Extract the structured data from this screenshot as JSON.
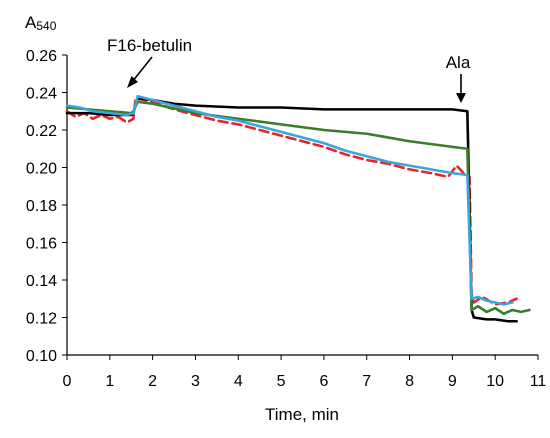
{
  "chart_data": {
    "type": "line",
    "ylabel_main": "A",
    "ylabel_sub": "540",
    "xlabel": "Time, min",
    "xlim": [
      0,
      11
    ],
    "ylim": [
      0.1,
      0.26
    ],
    "x_ticks": [
      0,
      1,
      2,
      3,
      4,
      5,
      6,
      7,
      8,
      9,
      10,
      11
    ],
    "y_ticks": [
      0.1,
      0.12,
      0.14,
      0.16,
      0.18,
      0.2,
      0.22,
      0.24,
      0.26
    ],
    "y_tick_labels": [
      "0.10",
      "0.12",
      "0.14",
      "0.16",
      "0.18",
      "0.20",
      "0.22",
      "0.24",
      "0.26"
    ],
    "grid": false,
    "annotations": [
      {
        "text": "F16-betulin",
        "x": 1.5,
        "y": 0.231
      },
      {
        "text": "Ala",
        "x": 9.35,
        "y": 0.232
      }
    ],
    "series": [
      {
        "color": "#e8232a",
        "dashed": true,
        "x": [
          0,
          0.2,
          0.4,
          0.6,
          0.8,
          1.0,
          1.2,
          1.4,
          1.55,
          1.6,
          2,
          2.5,
          3,
          3.5,
          4,
          4.5,
          5,
          5.5,
          6,
          6.5,
          7,
          7.5,
          8,
          8.5,
          8.9,
          9.1,
          9.3,
          9.4,
          9.45,
          9.5,
          9.7,
          10,
          10.3,
          10.5
        ],
        "y": [
          0.23,
          0.227,
          0.229,
          0.226,
          0.228,
          0.226,
          0.227,
          0.224,
          0.226,
          0.237,
          0.235,
          0.231,
          0.228,
          0.225,
          0.223,
          0.22,
          0.217,
          0.214,
          0.211,
          0.207,
          0.204,
          0.202,
          0.199,
          0.197,
          0.195,
          0.201,
          0.196,
          0.195,
          0.132,
          0.128,
          0.131,
          0.127,
          0.128,
          0.13
        ]
      },
      {
        "color": "#000000",
        "dashed": false,
        "x": [
          0,
          0.5,
          1.0,
          1.5,
          1.55,
          1.65,
          2,
          2.5,
          3,
          4,
          5,
          6,
          7,
          8,
          9,
          9.35,
          9.45,
          9.5,
          9.8,
          10,
          10.3,
          10.5
        ],
        "y": [
          0.229,
          0.229,
          0.228,
          0.228,
          0.229,
          0.237,
          0.236,
          0.234,
          0.233,
          0.232,
          0.232,
          0.231,
          0.231,
          0.231,
          0.231,
          0.23,
          0.124,
          0.12,
          0.119,
          0.119,
          0.118,
          0.118
        ]
      },
      {
        "color": "#3b7d2a",
        "dashed": false,
        "x": [
          0,
          0.5,
          1.0,
          1.5,
          1.55,
          1.65,
          2,
          3,
          4,
          5,
          6,
          7,
          8,
          9,
          9.35,
          9.45,
          9.6,
          9.8,
          10,
          10.2,
          10.4,
          10.6,
          10.8
        ],
        "y": [
          0.232,
          0.231,
          0.23,
          0.229,
          0.23,
          0.235,
          0.234,
          0.229,
          0.226,
          0.223,
          0.22,
          0.218,
          0.214,
          0.211,
          0.21,
          0.124,
          0.126,
          0.123,
          0.125,
          0.122,
          0.124,
          0.123,
          0.124
        ]
      },
      {
        "color": "#3aa6dc",
        "dashed": false,
        "x": [
          0,
          0.3,
          0.6,
          1.0,
          1.4,
          1.55,
          1.65,
          2,
          2.5,
          3,
          3.5,
          4,
          4.5,
          5,
          5.5,
          6,
          6.5,
          7,
          7.5,
          8,
          8.5,
          9,
          9.35,
          9.45,
          9.6,
          9.8,
          10.0,
          10.2,
          10.4
        ],
        "y": [
          0.233,
          0.232,
          0.23,
          0.229,
          0.228,
          0.229,
          0.238,
          0.236,
          0.233,
          0.23,
          0.227,
          0.225,
          0.222,
          0.219,
          0.216,
          0.213,
          0.209,
          0.206,
          0.203,
          0.201,
          0.199,
          0.197,
          0.196,
          0.13,
          0.131,
          0.129,
          0.128,
          0.127,
          0.128
        ]
      }
    ]
  }
}
